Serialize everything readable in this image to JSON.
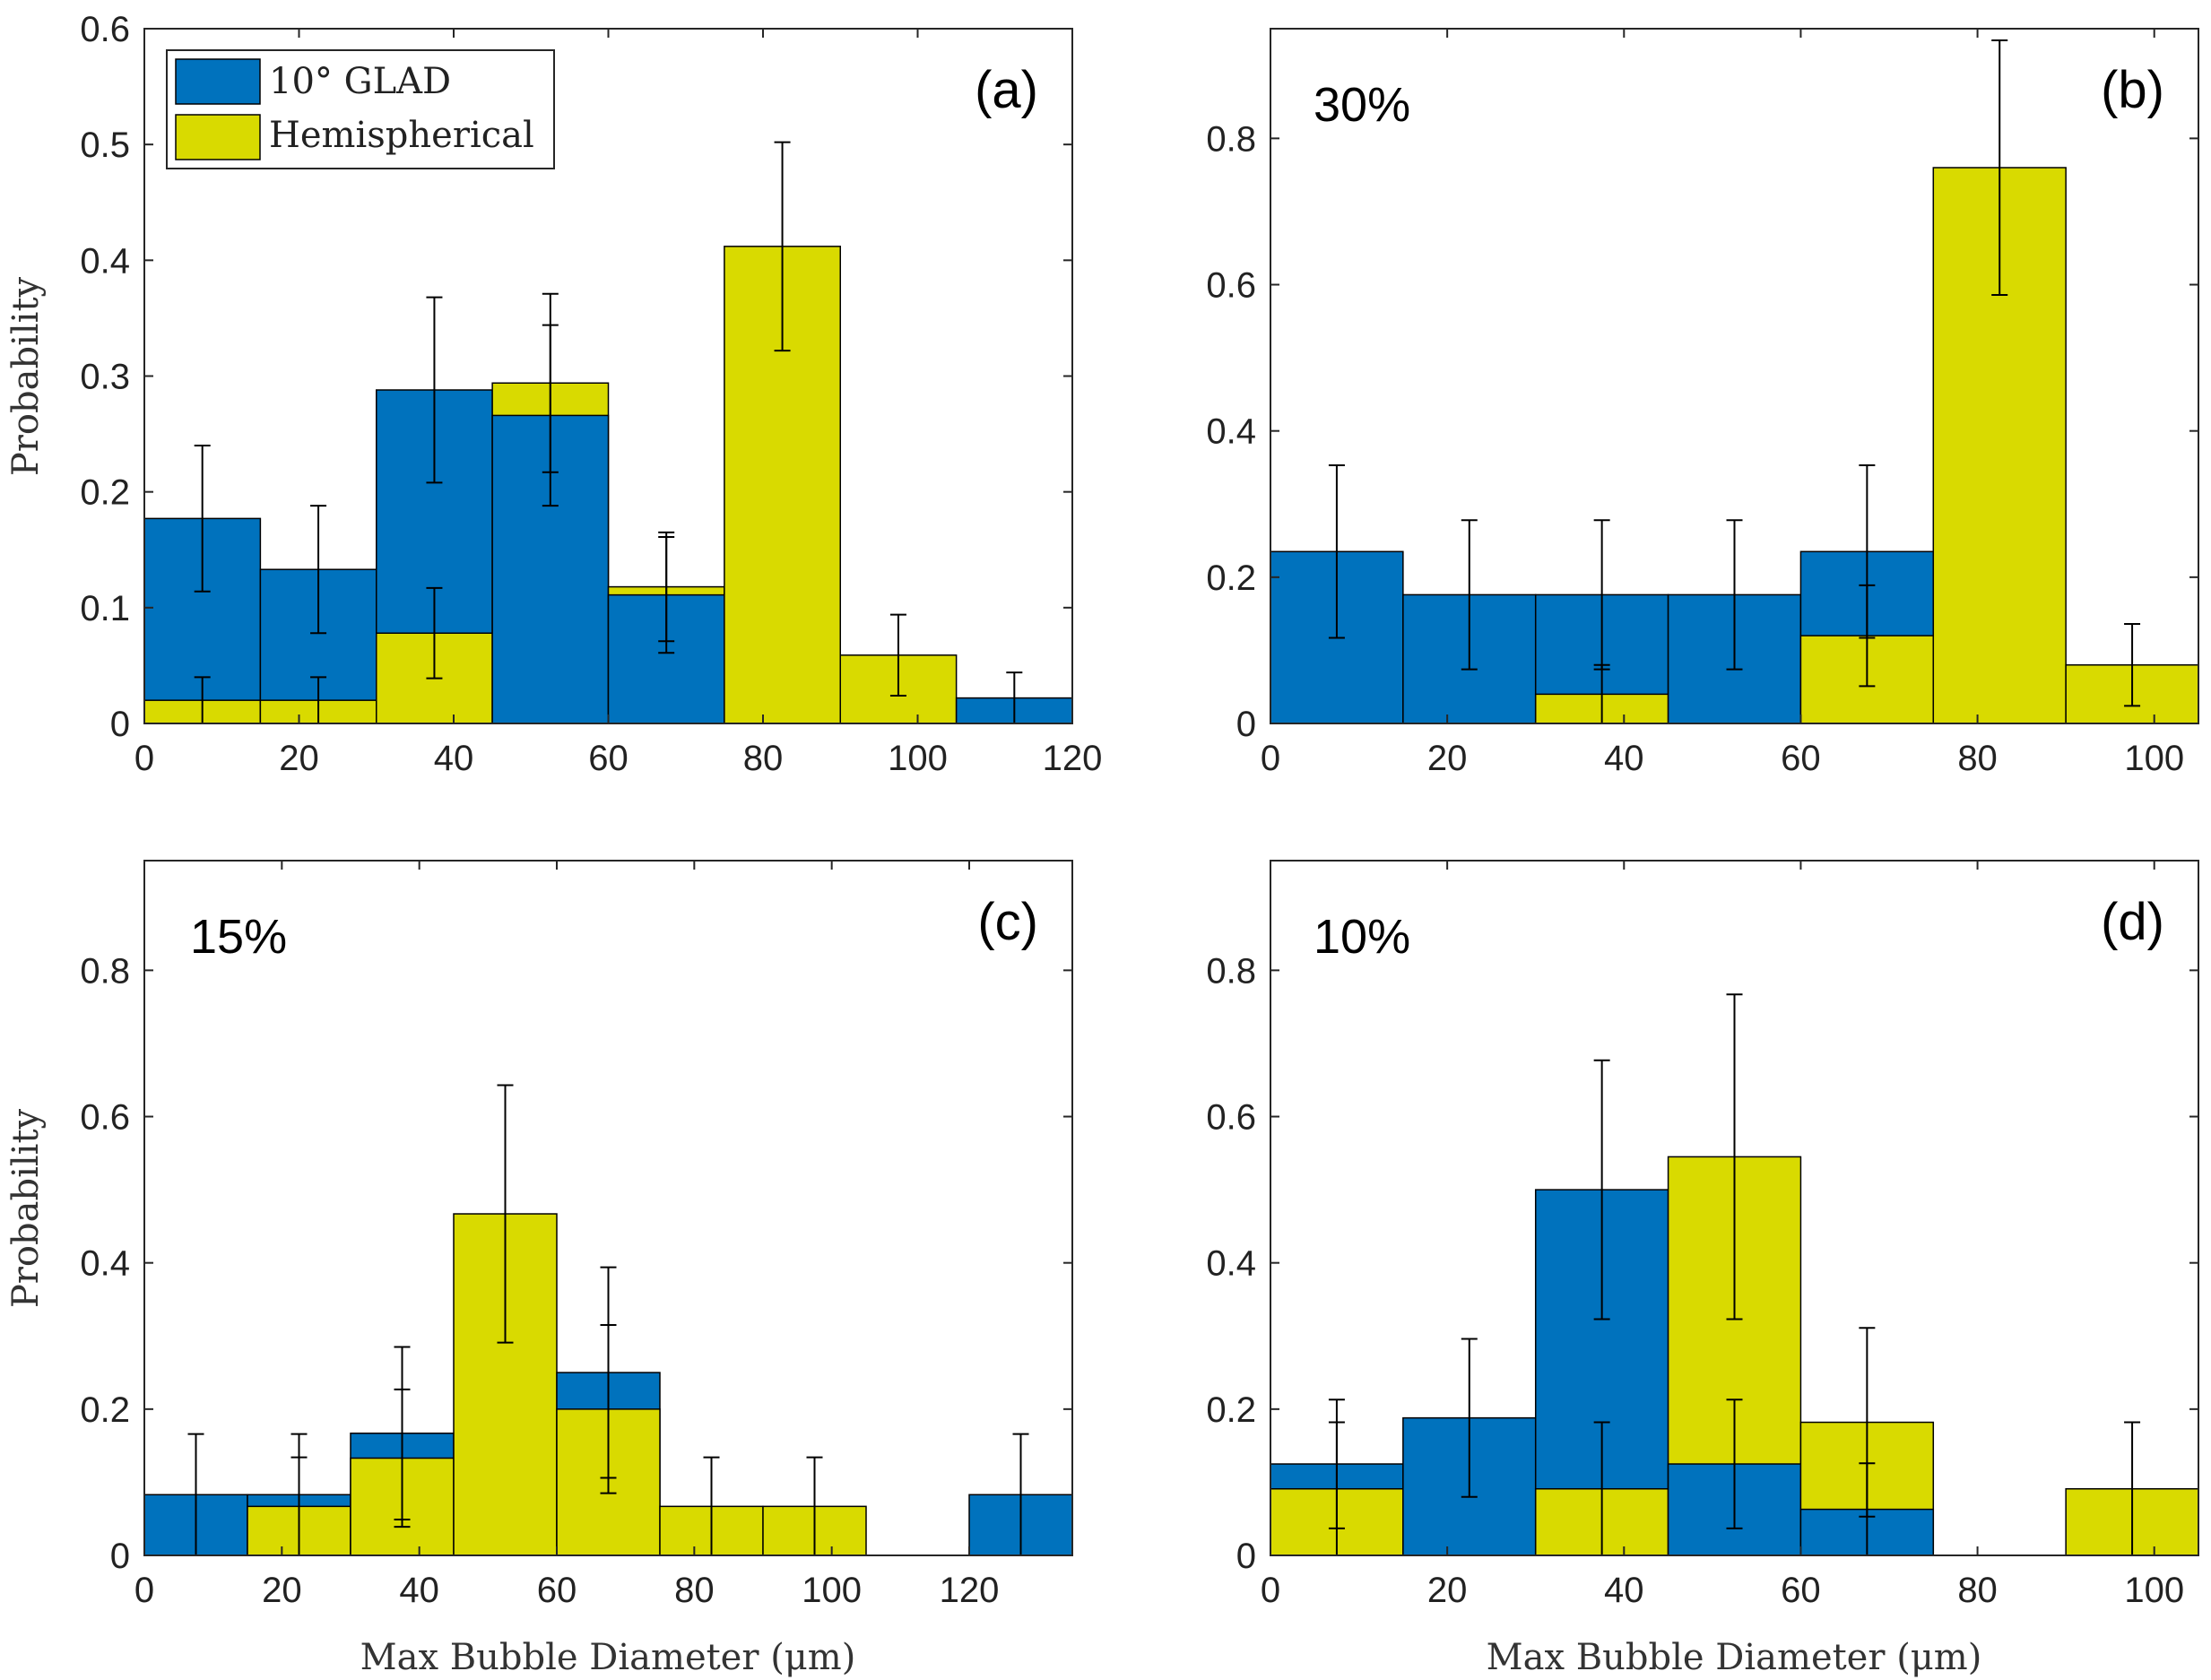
{
  "colors": {
    "blue": "#0072BD",
    "yellow": "#D9DA00",
    "axis": "#262626",
    "errorbar": "#000000"
  },
  "legend": {
    "entries": [
      "10° GLAD",
      "Hemispherical"
    ]
  },
  "chart_data": [
    {
      "type": "bar",
      "panel_label": "(a)",
      "annotation": "",
      "ylabel": "Probability",
      "xlabel": "",
      "xlim": [
        0,
        120
      ],
      "ylim": [
        0,
        0.6
      ],
      "xticks": [
        "0",
        "20",
        "40",
        "60",
        "80",
        "100",
        "120"
      ],
      "yticks": [
        "0",
        "0.1",
        "0.2",
        "0.3",
        "0.4",
        "0.5",
        "0.6"
      ],
      "bin_edges": [
        0,
        15,
        30,
        45,
        60,
        75,
        90,
        105,
        120
      ],
      "series": [
        {
          "name": "10° GLAD",
          "values": [
            0.177,
            0.133,
            0.288,
            0.266,
            0.111,
            0.0,
            0.0,
            0.022
          ],
          "err": [
            0.063,
            0.055,
            0.08,
            0.078,
            0.05,
            0.0,
            0.0,
            0.022
          ]
        },
        {
          "name": "Hemispherical",
          "values": [
            0.02,
            0.02,
            0.078,
            0.294,
            0.118,
            0.412,
            0.059,
            0.0
          ],
          "err": [
            0.02,
            0.02,
            0.039,
            0.077,
            0.047,
            0.09,
            0.035,
            0.0
          ]
        }
      ]
    },
    {
      "type": "bar",
      "panel_label": "(b)",
      "annotation": "30%",
      "ylabel": "",
      "xlabel": "",
      "xlim": [
        0,
        105
      ],
      "ylim": [
        0,
        0.95
      ],
      "xticks": [
        "0",
        "20",
        "40",
        "60",
        "80",
        "100"
      ],
      "yticks": [
        "0",
        "0.2",
        "0.4",
        "0.6",
        "0.8"
      ],
      "bin_edges": [
        0,
        15,
        30,
        45,
        60,
        75,
        90,
        105
      ],
      "series": [
        {
          "name": "10° GLAD",
          "values": [
            0.235,
            0.176,
            0.176,
            0.176,
            0.235,
            0.0,
            0.0
          ],
          "err": [
            0.118,
            0.102,
            0.102,
            0.102,
            0.118,
            0.0,
            0.0
          ]
        },
        {
          "name": "Hemispherical",
          "values": [
            0.0,
            0.0,
            0.04,
            0.0,
            0.12,
            0.76,
            0.08
          ],
          "err": [
            0.0,
            0.0,
            0.04,
            0.0,
            0.069,
            0.174,
            0.056
          ]
        }
      ]
    },
    {
      "type": "bar",
      "panel_label": "(c)",
      "annotation": "15%",
      "ylabel": "Probability",
      "xlabel": "Max Bubble Diameter (μm)",
      "xlim": [
        0,
        135
      ],
      "ylim": [
        0,
        0.95
      ],
      "xticks": [
        "0",
        "20",
        "40",
        "60",
        "80",
        "100",
        "120"
      ],
      "yticks": [
        "0",
        "0.2",
        "0.4",
        "0.6",
        "0.8"
      ],
      "bin_edges": [
        0,
        15,
        30,
        45,
        60,
        75,
        90,
        105,
        120,
        135
      ],
      "series": [
        {
          "name": "10° GLAD",
          "values": [
            0.083,
            0.083,
            0.167,
            0.0,
            0.25,
            0.0,
            0.0,
            0.0,
            0.083
          ],
          "err": [
            0.083,
            0.083,
            0.118,
            0.0,
            0.144,
            0.0,
            0.0,
            0.0,
            0.083
          ]
        },
        {
          "name": "Hemispherical",
          "values": [
            0.0,
            0.067,
            0.133,
            0.467,
            0.2,
            0.067,
            0.067,
            0.0,
            0.0
          ],
          "err": [
            0.0,
            0.067,
            0.094,
            0.176,
            0.115,
            0.067,
            0.067,
            0.0,
            0.0
          ]
        }
      ]
    },
    {
      "type": "bar",
      "panel_label": "(d)",
      "annotation": "10%",
      "ylabel": "",
      "xlabel": "Max Bubble Diameter (μm)",
      "xlim": [
        0,
        105
      ],
      "ylim": [
        0,
        0.95
      ],
      "xticks": [
        "0",
        "20",
        "40",
        "60",
        "80",
        "100"
      ],
      "yticks": [
        "0",
        "0.2",
        "0.4",
        "0.6",
        "0.8"
      ],
      "bin_edges": [
        0,
        15,
        30,
        45,
        60,
        75,
        90,
        105
      ],
      "series": [
        {
          "name": "10° GLAD",
          "values": [
            0.125,
            0.188,
            0.5,
            0.125,
            0.063,
            0.0,
            0.0
          ],
          "err": [
            0.088,
            0.108,
            0.177,
            0.088,
            0.063,
            0.0,
            0.0
          ]
        },
        {
          "name": "Hemispherical",
          "values": [
            0.091,
            0.0,
            0.091,
            0.545,
            0.182,
            0.0,
            0.091
          ],
          "err": [
            0.091,
            0.0,
            0.091,
            0.222,
            0.129,
            0.0,
            0.091
          ]
        }
      ]
    }
  ]
}
